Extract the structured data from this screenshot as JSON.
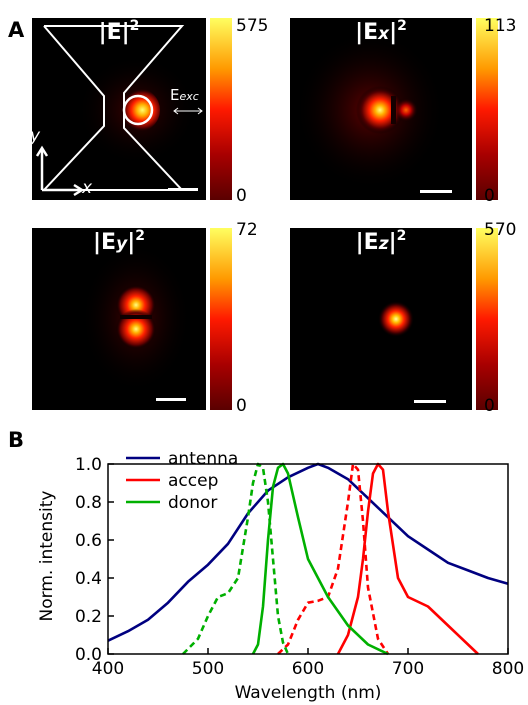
{
  "panel_a": {
    "letter": "A",
    "maps": [
      {
        "title_base": "|E|",
        "title_sub": "",
        "title_sup": "2",
        "cbar_max": "575",
        "cbar_min": "0",
        "exc_label_main": "E",
        "exc_label_sub": "exc",
        "axis_y": "y",
        "axis_x": "x"
      },
      {
        "title_base": "|E",
        "title_sub": "x",
        "title_sup": "2",
        "cbar_max": "113",
        "cbar_min": "0"
      },
      {
        "title_base": "|E",
        "title_sub": "y",
        "title_sup": "2",
        "cbar_max": "72",
        "cbar_min": "0"
      },
      {
        "title_base": "|E",
        "title_sub": "z",
        "title_sup": "2",
        "cbar_max": "570",
        "cbar_min": "0"
      }
    ]
  },
  "panel_b": {
    "letter": "B"
  },
  "chart_data": {
    "type": "line",
    "xlabel": "Wavelength (nm)",
    "ylabel": "Norm. intensity",
    "xlim": [
      400,
      800
    ],
    "ylim": [
      0,
      1.0
    ],
    "x_ticks": [
      "400",
      "500",
      "600",
      "700",
      "800"
    ],
    "y_ticks": [
      "0.0",
      "0.2",
      "0.4",
      "0.6",
      "0.8",
      "1.0"
    ],
    "legend_position": "top-left",
    "legend": [
      {
        "label": "antenna",
        "color": "#000080"
      },
      {
        "label": "accep",
        "color": "#ff0000"
      },
      {
        "label": "donor",
        "color": "#00b000"
      }
    ],
    "series": [
      {
        "name": "antenna",
        "color": "#000080",
        "dash": "solid",
        "x": [
          400,
          420,
          440,
          460,
          480,
          500,
          520,
          540,
          560,
          580,
          600,
          610,
          620,
          640,
          660,
          680,
          700,
          720,
          740,
          760,
          780,
          800
        ],
        "y": [
          0.07,
          0.12,
          0.18,
          0.27,
          0.38,
          0.47,
          0.58,
          0.74,
          0.86,
          0.93,
          0.98,
          1.0,
          0.98,
          0.92,
          0.82,
          0.72,
          0.62,
          0.55,
          0.48,
          0.44,
          0.4,
          0.37
        ]
      },
      {
        "name": "accep",
        "color": "#ff0000",
        "dash": "dashed",
        "x": [
          570,
          580,
          590,
          600,
          610,
          620,
          630,
          640,
          645,
          650,
          655,
          660,
          670,
          680
        ],
        "y": [
          0.0,
          0.05,
          0.18,
          0.27,
          0.28,
          0.3,
          0.45,
          0.8,
          1.0,
          0.97,
          0.7,
          0.35,
          0.08,
          0.0
        ]
      },
      {
        "name": "accep",
        "color": "#ff0000",
        "dash": "solid",
        "x": [
          630,
          640,
          650,
          655,
          660,
          665,
          670,
          675,
          680,
          690,
          700,
          720,
          740,
          760,
          770
        ],
        "y": [
          0.0,
          0.1,
          0.3,
          0.5,
          0.75,
          0.95,
          1.0,
          0.97,
          0.75,
          0.4,
          0.3,
          0.25,
          0.15,
          0.05,
          0.0
        ]
      },
      {
        "name": "donor",
        "color": "#00b000",
        "dash": "dashed",
        "x": [
          475,
          490,
          500,
          510,
          520,
          530,
          540,
          545,
          550,
          555,
          560,
          565,
          570,
          575,
          580
        ],
        "y": [
          0.0,
          0.08,
          0.2,
          0.3,
          0.32,
          0.4,
          0.72,
          0.9,
          1.0,
          0.98,
          0.8,
          0.5,
          0.2,
          0.06,
          0.0
        ]
      },
      {
        "name": "donor",
        "color": "#00b000",
        "dash": "solid",
        "x": [
          545,
          550,
          555,
          560,
          565,
          570,
          575,
          580,
          590,
          600,
          620,
          640,
          660,
          680
        ],
        "y": [
          0.0,
          0.05,
          0.25,
          0.6,
          0.88,
          0.98,
          1.0,
          0.95,
          0.72,
          0.5,
          0.3,
          0.15,
          0.05,
          0.0
        ]
      }
    ]
  }
}
